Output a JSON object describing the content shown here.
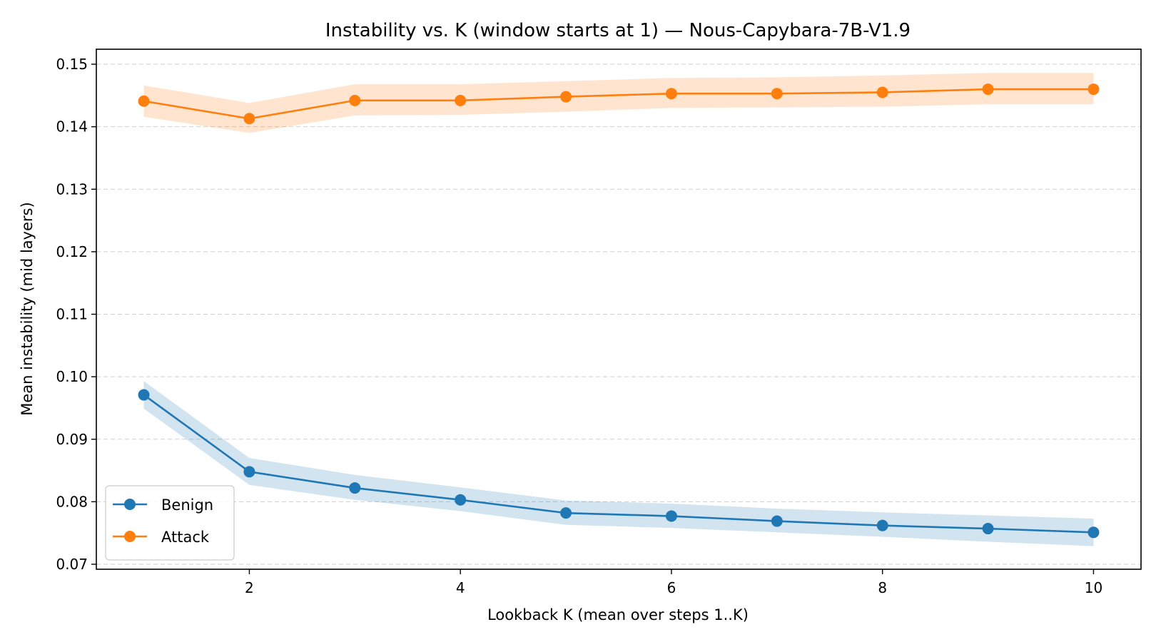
{
  "chart_data": {
    "type": "line",
    "title": "Instability vs. K (window starts at 1) — Nous-Capybara-7B-V1.9",
    "xlabel": "Lookback K (mean over steps 1..K)",
    "ylabel": "Mean instability (mid layers)",
    "x": [
      1,
      2,
      3,
      4,
      5,
      6,
      7,
      8,
      9,
      10
    ],
    "xlim": [
      0.55,
      10.45
    ],
    "ylim": [
      0.0692,
      0.1524
    ],
    "xticks": [
      2,
      4,
      6,
      8,
      10
    ],
    "xtick_labels": [
      "2",
      "4",
      "6",
      "8",
      "10"
    ],
    "yticks": [
      0.07,
      0.08,
      0.09,
      0.1,
      0.11,
      0.12,
      0.13,
      0.14,
      0.15
    ],
    "ytick_labels": [
      "0.07",
      "0.08",
      "0.09",
      "0.10",
      "0.11",
      "0.12",
      "0.13",
      "0.14",
      "0.15"
    ],
    "grid": "y-dashed",
    "legend_position": "lower-left",
    "series": [
      {
        "name": "Benign",
        "color": "#1f77b4",
        "band_color": "#1f77b4",
        "values": [
          0.0971,
          0.0848,
          0.0822,
          0.0803,
          0.0782,
          0.0777,
          0.0769,
          0.0762,
          0.0757,
          0.0751
        ],
        "lower": [
          0.0949,
          0.0827,
          0.0803,
          0.0785,
          0.0763,
          0.0758,
          0.0751,
          0.0744,
          0.0736,
          0.0729
        ],
        "upper": [
          0.0993,
          0.087,
          0.0843,
          0.0823,
          0.0802,
          0.0797,
          0.0789,
          0.0783,
          0.0778,
          0.0773
        ]
      },
      {
        "name": "Attack",
        "color": "#ff7f0e",
        "band_color": "#ff7f0e",
        "values": [
          0.1441,
          0.1413,
          0.1442,
          0.1442,
          0.1448,
          0.1453,
          0.1453,
          0.1455,
          0.146,
          0.146
        ],
        "lower": [
          0.1416,
          0.139,
          0.1418,
          0.1419,
          0.1424,
          0.143,
          0.1431,
          0.1432,
          0.1436,
          0.1436
        ],
        "upper": [
          0.1466,
          0.1438,
          0.1468,
          0.1468,
          0.1473,
          0.1478,
          0.1479,
          0.1482,
          0.1486,
          0.1486
        ]
      }
    ]
  }
}
